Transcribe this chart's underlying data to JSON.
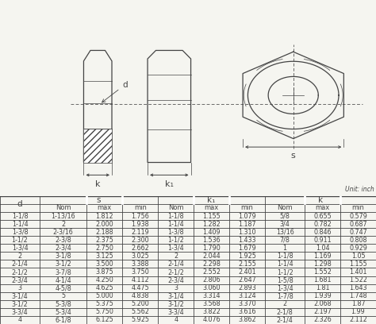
{
  "unit_label": "Unit: inch",
  "bg_color": "#f5f5f0",
  "line_color": "#444444",
  "table_data": [
    [
      "1-1/8",
      "1-13/16",
      "1.812",
      "1.756",
      "1-1/8",
      "1.155",
      "1.079",
      "5/8",
      "0.655",
      "0.579"
    ],
    [
      "1-1/4",
      "2",
      "2.000",
      "1.938",
      "1-1/4",
      "1.282",
      "1.187",
      "3/4",
      "0.782",
      "0.687"
    ],
    [
      "1-3/8",
      "2-3/16",
      "2.188",
      "2.119",
      "1-3/8",
      "1.409",
      "1.310",
      "13/16",
      "0.846",
      "0.747"
    ],
    [
      "1-1/2",
      "2-3/8",
      "2.375",
      "2.300",
      "1-1/2",
      "1.536",
      "1.433",
      "7/8",
      "0.911",
      "0.808"
    ],
    [
      "1-3/4",
      "2-3/4",
      "2.750",
      "2.662",
      "1-3/4",
      "1.790",
      "1.679",
      "1",
      "1.04",
      "0.929"
    ],
    [
      "2",
      "3-1/8",
      "3.125",
      "3.025",
      "2",
      "2.044",
      "1.925",
      "1-1/8",
      "1.169",
      "1.05"
    ],
    [
      "2-1/4",
      "3-1/2",
      "3.500",
      "3.388",
      "2-1/4",
      "2.298",
      "2.155",
      "1-1/4",
      "1.298",
      "1.155"
    ],
    [
      "2-1/2",
      "3-7/8",
      "3.875",
      "3.750",
      "2-1/2",
      "2.552",
      "2.401",
      "1-1/2",
      "1.552",
      "1.401"
    ],
    [
      "2-3/4",
      "4-1/4",
      "4.250",
      "4.112",
      "2-3/4",
      "2.806",
      "2.647",
      "1-5/8",
      "1.681",
      "1.522"
    ],
    [
      "3",
      "4-5/8",
      "4.625",
      "4.475",
      "3",
      "3.060",
      "2.893",
      "1-3/4",
      "1.81",
      "1.643"
    ],
    [
      "3-1/4",
      "5",
      "5.000",
      "4.838",
      "3-1/4",
      "3.314",
      "3.124",
      "1-7/8",
      "1.939",
      "1.748"
    ],
    [
      "3-1/2",
      "5-3/8",
      "5.375",
      "5.200",
      "3-1/2",
      "3.568",
      "3.370",
      "2",
      "2.068",
      "1.87"
    ],
    [
      "3-3/4",
      "5-3/4",
      "5.750",
      "5.562",
      "3-3/4",
      "3.822",
      "3.616",
      "2-1/8",
      "2.197",
      "1.99"
    ],
    [
      "4",
      "6-1/8",
      "6.125",
      "5.925",
      "4",
      "4.076",
      "3.862",
      "2-1/4",
      "2.326",
      "2.112"
    ]
  ]
}
